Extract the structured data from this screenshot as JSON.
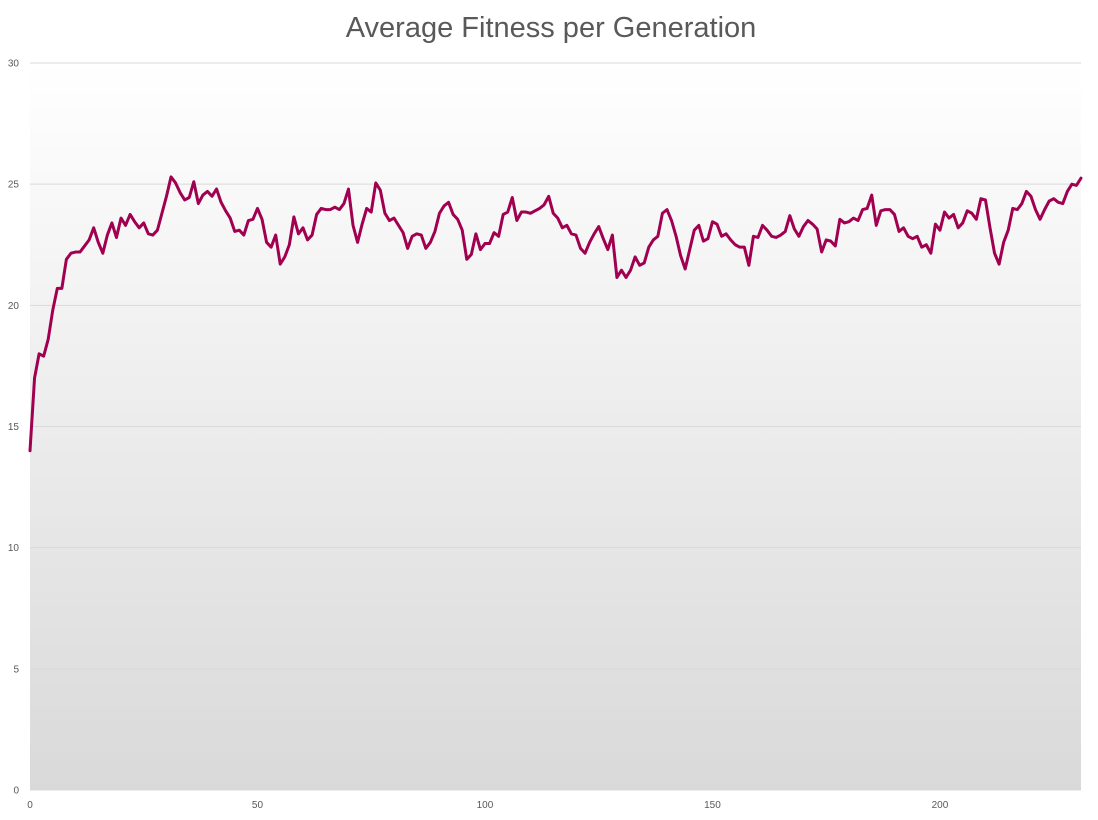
{
  "chart_data": {
    "type": "line",
    "title": "Average Fitness per Generation",
    "xlabel": "",
    "ylabel": "",
    "xlim": [
      0,
      231
    ],
    "ylim": [
      0,
      30
    ],
    "x_ticks": [
      0,
      50,
      100,
      150,
      200
    ],
    "y_ticks": [
      0,
      5,
      10,
      15,
      20,
      25,
      30
    ],
    "grid": true,
    "legend": "none",
    "colors": {
      "line": "#A0004F",
      "plot_bg_top": "#FFFFFF",
      "plot_bg_bottom": "#D9D9D9",
      "grid": "#D9D9D9",
      "text": "#595959"
    },
    "series": [
      {
        "values": [
          14.0,
          17.0,
          18.0,
          17.9,
          18.6,
          19.8,
          20.7,
          20.7,
          21.9,
          22.15,
          22.2,
          22.2,
          22.45,
          22.7,
          23.2,
          22.6,
          22.15,
          22.9,
          23.4,
          22.8,
          23.6,
          23.3,
          23.75,
          23.45,
          23.2,
          23.4,
          22.95,
          22.9,
          23.1,
          23.8,
          24.5,
          25.3,
          25.05,
          24.65,
          24.35,
          24.45,
          25.1,
          24.2,
          24.55,
          24.7,
          24.5,
          24.8,
          24.25,
          23.9,
          23.6,
          23.05,
          23.1,
          22.9,
          23.5,
          23.55,
          24.0,
          23.55,
          22.6,
          22.4,
          22.9,
          21.7,
          22.0,
          22.5,
          23.65,
          22.95,
          23.2,
          22.7,
          22.9,
          23.75,
          24.0,
          23.95,
          23.95,
          24.05,
          23.95,
          24.2,
          24.8,
          23.3,
          22.6,
          23.35,
          24.0,
          23.85,
          25.05,
          24.75,
          23.8,
          23.5,
          23.6,
          23.3,
          23.0,
          22.35,
          22.85,
          22.95,
          22.9,
          22.35,
          22.6,
          23.05,
          23.8,
          24.1,
          24.25,
          23.75,
          23.55,
          23.1,
          21.9,
          22.1,
          22.95,
          22.3,
          22.55,
          22.55,
          23.0,
          22.85,
          23.75,
          23.85,
          24.45,
          23.5,
          23.85,
          23.85,
          23.8,
          23.9,
          24.0,
          24.15,
          24.5,
          23.8,
          23.6,
          23.2,
          23.3,
          22.95,
          22.9,
          22.35,
          22.15,
          22.6,
          22.95,
          23.25,
          22.75,
          22.3,
          22.9,
          21.15,
          21.45,
          21.15,
          21.45,
          22.0,
          21.65,
          21.75,
          22.4,
          22.7,
          22.85,
          23.8,
          23.95,
          23.5,
          22.85,
          22.05,
          21.5,
          22.3,
          23.1,
          23.3,
          22.65,
          22.75,
          23.45,
          23.35,
          22.85,
          22.95,
          22.7,
          22.5,
          22.4,
          22.4,
          21.65,
          22.85,
          22.8,
          23.3,
          23.1,
          22.85,
          22.8,
          22.9,
          23.05,
          23.7,
          23.15,
          22.85,
          23.25,
          23.5,
          23.35,
          23.15,
          22.2,
          22.7,
          22.65,
          22.45,
          23.55,
          23.4,
          23.45,
          23.6,
          23.5,
          23.95,
          24.0,
          24.55,
          23.3,
          23.9,
          23.95,
          23.95,
          23.75,
          23.05,
          23.2,
          22.85,
          22.75,
          22.85,
          22.4,
          22.5,
          22.15,
          23.35,
          23.1,
          23.85,
          23.6,
          23.75,
          23.2,
          23.4,
          23.9,
          23.8,
          23.55,
          24.4,
          24.35,
          23.2,
          22.15,
          21.7,
          22.6,
          23.1,
          24.0,
          23.95,
          24.2,
          24.7,
          24.5,
          23.95,
          23.55,
          23.95,
          24.3,
          24.4,
          24.25,
          24.2,
          24.7,
          25.0,
          24.95,
          25.25
        ]
      }
    ]
  }
}
